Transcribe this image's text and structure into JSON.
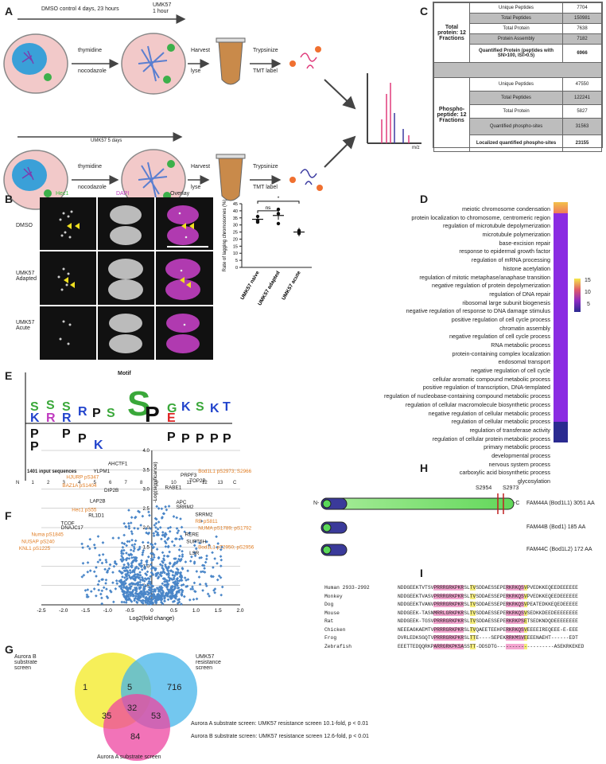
{
  "panels": {
    "A": "A",
    "B": "B",
    "C": "C",
    "D": "D",
    "E": "E",
    "F": "F",
    "G": "G",
    "H": "H",
    "I": "I"
  },
  "panelA": {
    "top_timeline": "DMSO control 4 days, 23 hours",
    "top_umk": "UMK57",
    "top_umk2": "1 hour",
    "bottom_timeline": "UMK57 5 days",
    "thymidine": "thymidine",
    "nocodazole": "nocodazole",
    "harvest": "Harvest",
    "lyse": "lyse",
    "trypsinize": "Trypsinize",
    "tmt": "TMT label",
    "mz": "m/z"
  },
  "panelC": {
    "total_group": "Total protein: 12 Fractions",
    "total_rows": [
      {
        "label": "Unique Peptides",
        "value": "7704",
        "shade": false
      },
      {
        "label": "Total Peptides",
        "value": "150981",
        "shade": true
      },
      {
        "label": "Total Protein",
        "value": "7638",
        "shade": false
      },
      {
        "label": "Protein Assembly",
        "value": "7182",
        "shade": true
      },
      {
        "label": "Quantified Protein (peptides with SN>100, ISI>0.5)",
        "value": "6966",
        "shade": false
      }
    ],
    "phospho_group": "Phospho-peptide: 12 Fractions",
    "phospho_rows": [
      {
        "label": "Unique Peptides",
        "value": "47550",
        "shade": false
      },
      {
        "label": "Total Peptides",
        "value": "122241",
        "shade": true
      },
      {
        "label": "Total Protein",
        "value": "5827",
        "shade": false
      },
      {
        "label": "Quantified phospho-sites",
        "value": "31563",
        "shade": true
      },
      {
        "label": "Localized quantified phospho-sites",
        "value": "23155",
        "shade": false
      }
    ]
  },
  "panelB": {
    "col_hec1": "Hec1",
    "col_dapi": "DAPI",
    "col_overlay": "Overlay",
    "row_dmso": "DMSO",
    "row_adapted": "UMK57 Adapted",
    "row_acute": "UMK57 Acute",
    "colors": {
      "hec1": "#3cc13c",
      "dapi": "#c040c0"
    }
  },
  "chart_data": [
    {
      "type": "scatter",
      "title": "",
      "ylabel": "Rate of lagging chromosomes (%)",
      "categories": [
        "UMK57 naive",
        "UMK57 adapted",
        "UMK57 acute"
      ],
      "ylim": [
        0,
        45
      ],
      "yticks": [
        0,
        5,
        10,
        15,
        20,
        25,
        30,
        35,
        40,
        45
      ],
      "points": [
        [
          36,
          33,
          32
        ],
        [
          41,
          38,
          31
        ],
        [
          26,
          25,
          24
        ]
      ],
      "means": [
        34,
        36.7,
        25
      ],
      "sig": [
        {
          "pair": [
            0,
            1
          ],
          "label": "ns"
        },
        {
          "pair": [
            0,
            2
          ],
          "label": "*"
        }
      ]
    },
    {
      "type": "heatmap",
      "title": "",
      "colorbar_ticks": [
        "15",
        "10",
        "5"
      ],
      "terms": [
        "meiotic chromosome condensation",
        "protein localization to chromosome, centromeric region",
        "regulation of microtubule depolymerization",
        "microtubule polymerization",
        "base-excision repair",
        "response to epidermal growth factor",
        "regulation of mRNA processing",
        "histone acetylation",
        "regulation of mitotic metaphase/anaphase transition",
        "negative regulation of protein depolymerization",
        "regulation of DNA repair",
        "ribosomal large subunit biogenesis",
        "negative regulation of response to DNA damage stimulus",
        "positive regulation of cell cycle process",
        "chromatin assembly",
        "negative regulation of cell cycle process",
        "RNA metabolic process",
        "protein-containing complex localization",
        "endosomal transport",
        "negative regulation of cell cycle",
        "cellular aromatic compound metabolic process",
        "positive regulation of transcription, DNA-templated",
        "regulation of nucleobase-containing compound metabolic process",
        "regulation of cellular macromolecule biosynthetic process",
        "negative regulation of cellular metabolic process",
        "regulation of cellular metabolic process",
        "regulation of transferase activity",
        "regulation of cellular protein metabolic process",
        "primary metabolic process",
        "developmental process",
        "nervous system process",
        "carboxylic acid biosynthetic process",
        "glycosylation"
      ]
    },
    {
      "type": "scatter",
      "title": "",
      "xlabel": "Log2(fold change)",
      "ylabel": "-Log(significance)",
      "xlim": [
        -2.5,
        2.0
      ],
      "ylim": [
        0,
        4.0
      ],
      "xticks": [
        "-2.5",
        "-2.0",
        "-1.5",
        "-1.0",
        "-0.5",
        "0",
        "0.5",
        "1.0",
        "1.5",
        "2.0"
      ],
      "yticks": [
        "0.5",
        "1.0",
        "1.5",
        "2.0",
        "2.5",
        "3.0",
        "3.5",
        "4.0"
      ],
      "labels": [
        {
          "text": "AHCTF1",
          "color": "#111"
        },
        {
          "text": "YLPM1",
          "color": "#111"
        },
        {
          "text": "HJURP pS347",
          "color": "#e07b20"
        },
        {
          "text": "BAZ1A pS1404",
          "color": "#e07b20"
        },
        {
          "text": "DIP2B",
          "color": "#111"
        },
        {
          "text": "LAP2B",
          "color": "#111"
        },
        {
          "text": "Hec1 pS55",
          "color": "#e07b20"
        },
        {
          "text": "RL1D1",
          "color": "#111"
        },
        {
          "text": "TCOF",
          "color": "#111"
        },
        {
          "text": "DNAJC17",
          "color": "#111"
        },
        {
          "text": "Numa pS1845",
          "color": "#e07b20"
        },
        {
          "text": "NUSAP pS240",
          "color": "#e07b20"
        },
        {
          "text": "KNL1 pS1225",
          "color": "#e07b20"
        },
        {
          "text": "Bod1L1 pS2973; S2966",
          "color": "#e07b20"
        },
        {
          "text": "PRPF3",
          "color": "#111"
        },
        {
          "text": "TOP2B",
          "color": "#111"
        },
        {
          "text": "RABE1",
          "color": "#111"
        },
        {
          "text": "APC",
          "color": "#111"
        },
        {
          "text": "SRRM2",
          "color": "#111"
        },
        {
          "text": "SRRM2",
          "color": "#111"
        },
        {
          "text": "RB pS811",
          "color": "#e07b20"
        },
        {
          "text": "NUMA pS1789; pS1792",
          "color": "#e07b20"
        },
        {
          "text": "RERE",
          "color": "#111"
        },
        {
          "text": "SUPT6H",
          "color": "#111"
        },
        {
          "text": "Bod1L1 pT2950; pS2956",
          "color": "#e07b20"
        },
        {
          "text": "LSR",
          "color": "#111"
        }
      ]
    }
  ],
  "panelE": {
    "motif": "Motif",
    "input": "1401 input sequences",
    "positions": [
      "1",
      "2",
      "3",
      "4",
      "5",
      "6",
      "7",
      "8",
      "9",
      "10",
      "11",
      "12",
      "13"
    ],
    "n": "N",
    "c": "C"
  },
  "panelG": {
    "aurora_b": "Aurora B substrate screen",
    "umk57": "UMK57 resistance screen",
    "aurora_a": "Aurora A substrate screen",
    "counts": {
      "b_only": "1",
      "b_umk": "5",
      "umk_only": "716",
      "center": "32",
      "a_b": "35",
      "a_umk": "53",
      "a_only": "84"
    },
    "note1": "Aurora A substrate screen: UMK57 resistance screen 10.1-fold, p < 0.01",
    "note2": "Aurora B substrate screen: UMK57 resistance screen 12.6-fold, p < 0.01"
  },
  "panelH": {
    "site1": "S2954",
    "site2": "S2973",
    "n": "N-",
    "c": "-C",
    "rows": [
      "FAM44A (Bod1L1) 3051 AA",
      "FAM44B (Bod1) 185 AA",
      "FAM44C (Bod1L2) 172 AA"
    ]
  },
  "panelI": {
    "species": [
      "Human 2933-2992",
      "Monkey",
      "Dog",
      "Mouse",
      "Rat",
      "Chicken",
      "Frog",
      "Zebrafish"
    ],
    "seqs": [
      "NDDGEEKTVTSVPRRRGRKPKRSLTVSDDAESSEPERKRKQSVPVEDKKEQEEDEEEEEE",
      "NDDGEEKTVASVPRRRGRKPKRSLTVSDDAESSEPERKRKQSVPVEDKKEQEEDEEEEEE",
      "NDDGEEKTVANVPRRRGRKPKRSLTVSDDAESSEPERKRKQSVPEATEDKKEQEDEEEEE",
      "NDDGEEK-TASNMRRLGRKPKRSLTVSDDAESSEPERKRKQSVSEDKKDEEDEEEEEEEE",
      "NDDGEEK-TGSVPRRRGRKPKRSLTVSDDAESSEPERKRKPSETSEDKNDQDEEEEEEEE",
      "NEEEAGKAEMTVPRRRGRKPKRSLTVQAEETEEHPERKRKQSVEEEEIREQEEE-E-EEE",
      "DVRLEDKSGQTVPRRRGRKPKRSLTTE----SEPEKRRKMSVEEEENAEHT------EDT",
      "EEETTEDQQRKPARRGRKPKSASSTT-DDSDTG-------------------ASEKRKEKED"
    ]
  }
}
